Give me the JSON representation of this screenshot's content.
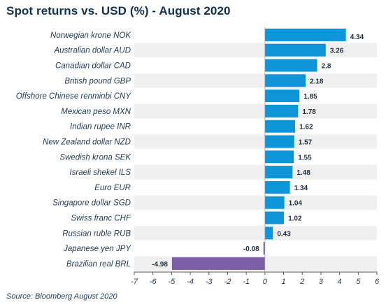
{
  "header": {
    "title": "Spot returns vs. USD (%) - August 2020"
  },
  "footer": {
    "source": "Source: Bloomberg August 2020"
  },
  "chart_data": {
    "type": "bar",
    "orientation": "horizontal",
    "title": "Spot returns vs. USD (%) - August 2020",
    "categories": [
      "Norwegian krone NOK",
      "Australian dollar AUD",
      "Canadian dollar CAD",
      "British pound GBP",
      "Offshore Chinese renminbi CNY",
      "Mexican peso MXN",
      "Indian rupee INR",
      "New Zealand dollar NZD",
      "Swedish krona SEK",
      "Israeli shekel ILS",
      "Euro EUR",
      "Singapore dollar SGD",
      "Swiss franc CHF",
      "Russian ruble RUB",
      "Japanese yen JPY",
      "Brazilian real BRL"
    ],
    "values": [
      4.34,
      3.26,
      2.8,
      2.18,
      1.85,
      1.78,
      1.62,
      1.57,
      1.55,
      1.48,
      1.34,
      1.04,
      1.02,
      0.43,
      -0.08,
      -4.98
    ],
    "value_labels": [
      "4.34",
      "3.26",
      "2.8",
      "2.18",
      "1.85",
      "1.78",
      "1.62",
      "1.57",
      "1.55",
      "1.48",
      "1.34",
      "1.04",
      "1.02",
      "0.43",
      "-0.08",
      "-4.98"
    ],
    "xlim": [
      -7,
      6
    ],
    "xticks": [
      -7,
      -6,
      -5,
      -4,
      -3,
      -2,
      -1,
      0,
      1,
      2,
      3,
      4,
      5,
      6
    ],
    "colors": {
      "positive": "#0d95d8",
      "negative": "#7b5ea6",
      "band": "#f0f0f0",
      "axis": "#555555"
    }
  }
}
